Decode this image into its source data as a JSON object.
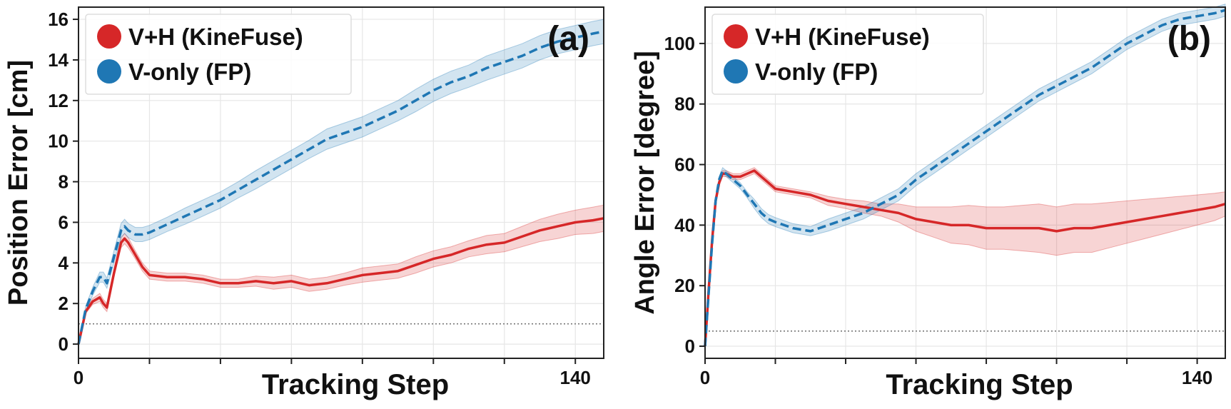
{
  "chart_data": [
    {
      "type": "line",
      "panel_label": "(a)",
      "xlabel": "Tracking Step",
      "ylabel": "Position Error [cm]",
      "xlim": [
        0,
        148
      ],
      "ylim": [
        -0.7,
        16.6
      ],
      "xtick_labels": [
        {
          "value": 0,
          "label": "0"
        },
        {
          "value": 140,
          "label": "140"
        }
      ],
      "xtick_marks": [
        0,
        20,
        40,
        60,
        80,
        100,
        120,
        140
      ],
      "yticks": [
        0,
        2,
        4,
        6,
        8,
        10,
        12,
        14,
        16
      ],
      "grid": true,
      "legend_position": "top-left",
      "reference_line": 1,
      "series": [
        {
          "name": "V+H (KineFuse)",
          "color": "#d62728",
          "style": "solid",
          "x": [
            0,
            2,
            4,
            6,
            7,
            8,
            10,
            12,
            13,
            14,
            16,
            18,
            20,
            25,
            30,
            35,
            40,
            45,
            50,
            55,
            60,
            65,
            70,
            75,
            80,
            85,
            90,
            95,
            100,
            105,
            110,
            115,
            120,
            125,
            130,
            135,
            140,
            145,
            148
          ],
          "y": [
            0,
            1.6,
            2.1,
            2.3,
            2.0,
            1.8,
            3.5,
            5.0,
            5.2,
            5.0,
            4.4,
            3.8,
            3.4,
            3.3,
            3.3,
            3.2,
            3.0,
            3.0,
            3.1,
            3.0,
            3.1,
            2.9,
            3.0,
            3.2,
            3.4,
            3.5,
            3.6,
            3.9,
            4.2,
            4.4,
            4.7,
            4.9,
            5.0,
            5.3,
            5.6,
            5.8,
            6.0,
            6.1,
            6.2
          ],
          "band": [
            0,
            0.1,
            0.15,
            0.2,
            0.2,
            0.2,
            0.2,
            0.25,
            0.25,
            0.25,
            0.2,
            0.2,
            0.2,
            0.2,
            0.2,
            0.2,
            0.2,
            0.2,
            0.25,
            0.3,
            0.3,
            0.3,
            0.3,
            0.3,
            0.35,
            0.35,
            0.35,
            0.4,
            0.4,
            0.4,
            0.4,
            0.45,
            0.45,
            0.5,
            0.55,
            0.6,
            0.6,
            0.65,
            0.65
          ]
        },
        {
          "name": "V-only (FP)",
          "color": "#1f77b4",
          "style": "dashed",
          "x": [
            0,
            2,
            4,
            6,
            7,
            8,
            10,
            12,
            13,
            14,
            16,
            18,
            20,
            25,
            30,
            35,
            40,
            45,
            50,
            55,
            60,
            65,
            70,
            75,
            80,
            85,
            90,
            95,
            100,
            105,
            110,
            115,
            120,
            125,
            130,
            135,
            140,
            145,
            148
          ],
          "y": [
            0,
            1.7,
            2.6,
            3.3,
            3.3,
            3.0,
            4.3,
            5.6,
            5.8,
            5.6,
            5.4,
            5.4,
            5.5,
            5.9,
            6.3,
            6.7,
            7.1,
            7.6,
            8.1,
            8.6,
            9.1,
            9.6,
            10.1,
            10.4,
            10.7,
            11.1,
            11.5,
            12.0,
            12.5,
            12.9,
            13.2,
            13.6,
            13.9,
            14.2,
            14.6,
            14.9,
            15.1,
            15.3,
            15.4
          ],
          "band": [
            0,
            0.15,
            0.2,
            0.25,
            0.25,
            0.25,
            0.3,
            0.35,
            0.35,
            0.35,
            0.35,
            0.35,
            0.35,
            0.35,
            0.4,
            0.4,
            0.4,
            0.4,
            0.45,
            0.45,
            0.45,
            0.45,
            0.5,
            0.5,
            0.5,
            0.5,
            0.5,
            0.55,
            0.55,
            0.55,
            0.55,
            0.6,
            0.6,
            0.6,
            0.6,
            0.6,
            0.6,
            0.6,
            0.6
          ]
        }
      ]
    },
    {
      "type": "line",
      "panel_label": "(b)",
      "xlabel": "Tracking Step",
      "ylabel": "Angle Error [degree]",
      "xlim": [
        0,
        148
      ],
      "ylim": [
        -4,
        112
      ],
      "xtick_labels": [
        {
          "value": 0,
          "label": "0"
        },
        {
          "value": 140,
          "label": "140"
        }
      ],
      "xtick_marks": [
        0,
        20,
        40,
        60,
        80,
        100,
        120,
        140
      ],
      "yticks": [
        0,
        20,
        40,
        60,
        80,
        100
      ],
      "grid": true,
      "legend_position": "top-left",
      "reference_line": 5,
      "series": [
        {
          "name": "V+H (KineFuse)",
          "color": "#d62728",
          "style": "solid",
          "x": [
            0,
            1,
            2,
            3,
            4,
            5,
            6,
            8,
            10,
            12,
            14,
            16,
            18,
            20,
            25,
            30,
            35,
            40,
            45,
            50,
            55,
            60,
            65,
            70,
            75,
            80,
            85,
            90,
            95,
            100,
            105,
            110,
            115,
            120,
            125,
            130,
            135,
            140,
            145,
            148
          ],
          "y": [
            0,
            18,
            35,
            48,
            54,
            57,
            57,
            56,
            56,
            57,
            58,
            56,
            54,
            52,
            51,
            50,
            48,
            47,
            46,
            45,
            44,
            42,
            41,
            40,
            40,
            39,
            39,
            39,
            39,
            38,
            39,
            39,
            40,
            41,
            42,
            43,
            44,
            45,
            46,
            47
          ],
          "band": [
            0,
            1,
            1,
            1,
            1,
            1,
            1,
            1,
            1,
            1,
            1,
            1,
            1,
            1,
            1,
            1,
            1.5,
            1.5,
            2,
            2,
            3,
            4,
            5,
            6,
            6.5,
            7,
            7,
            7.5,
            8,
            8,
            8,
            8,
            7.5,
            7,
            6.5,
            6,
            5.5,
            5,
            4.5,
            4
          ]
        },
        {
          "name": "V-only (FP)",
          "color": "#1f77b4",
          "style": "dashed",
          "x": [
            0,
            1,
            2,
            3,
            4,
            5,
            6,
            8,
            10,
            12,
            14,
            16,
            18,
            20,
            25,
            30,
            35,
            40,
            45,
            50,
            55,
            60,
            65,
            70,
            75,
            80,
            85,
            90,
            95,
            100,
            105,
            110,
            115,
            120,
            125,
            130,
            135,
            140,
            145,
            148
          ],
          "y": [
            0,
            17,
            34,
            48,
            55,
            58,
            57,
            55,
            53,
            50,
            47,
            44,
            42,
            41,
            39,
            38,
            40,
            42,
            44,
            47,
            50,
            55,
            59,
            63,
            67,
            71,
            75,
            79,
            83,
            86,
            89,
            92,
            96,
            100,
            103,
            106,
            108,
            109,
            110,
            111
          ],
          "band": [
            0,
            1,
            1,
            1,
            1,
            1,
            1,
            1,
            1,
            1,
            1.5,
            1.5,
            1.5,
            1.5,
            1.5,
            1.5,
            2,
            2,
            2,
            2,
            2,
            2,
            2,
            2,
            2,
            2,
            2,
            2,
            2,
            2,
            2,
            2,
            2,
            2,
            2,
            2,
            2,
            2,
            2,
            2
          ]
        }
      ]
    }
  ]
}
